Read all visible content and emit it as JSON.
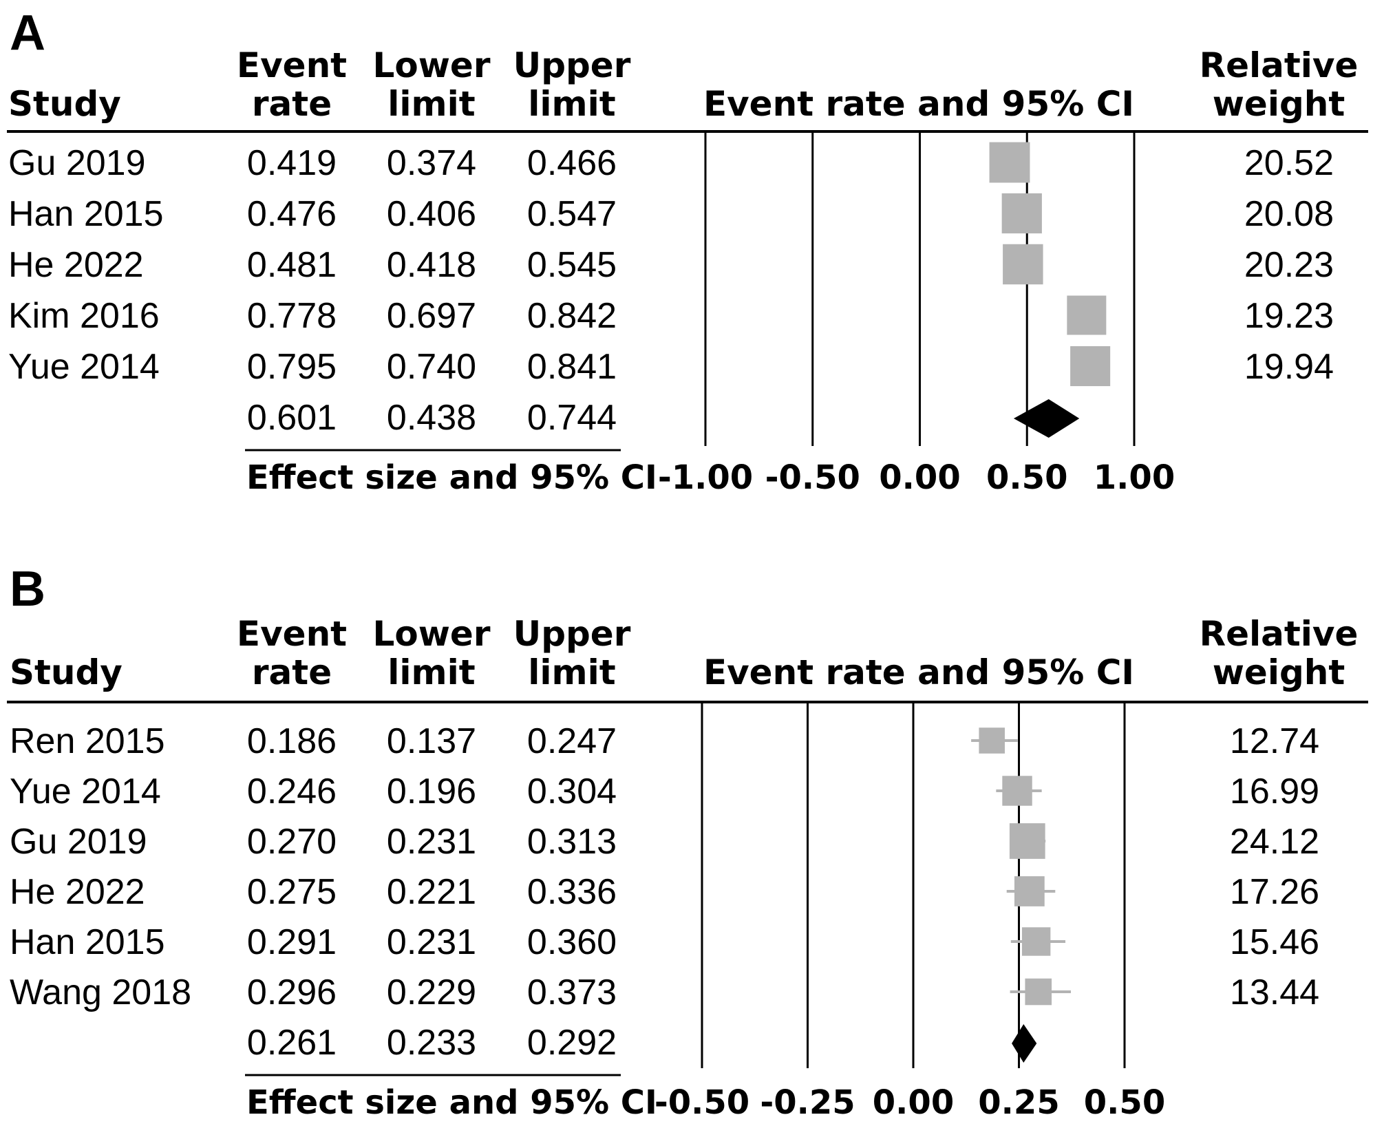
{
  "chart_data": [
    {
      "panel": "A",
      "type": "forest",
      "headers": {
        "study": "Study",
        "event_rate": [
          "Event",
          "rate"
        ],
        "lower_limit": [
          "Lower",
          "limit"
        ],
        "upper_limit": [
          "Upper",
          "limit"
        ],
        "plot_title": "Event rate and 95% CI",
        "relative_weight": [
          "Relative",
          "weight"
        ]
      },
      "studies": [
        {
          "name": "Gu 2019",
          "event_rate": "0.419",
          "lower": "0.374",
          "upper": "0.466",
          "weight": "20.52"
        },
        {
          "name": "Han 2015",
          "event_rate": "0.476",
          "lower": "0.406",
          "upper": "0.547",
          "weight": "20.08"
        },
        {
          "name": "He 2022",
          "event_rate": "0.481",
          "lower": "0.418",
          "upper": "0.545",
          "weight": "20.23"
        },
        {
          "name": "Kim 2016",
          "event_rate": "0.778",
          "lower": "0.697",
          "upper": "0.842",
          "weight": "19.23"
        },
        {
          "name": "Yue 2014",
          "event_rate": "0.795",
          "lower": "0.740",
          "upper": "0.841",
          "weight": "19.94"
        }
      ],
      "pooled": {
        "event_rate": "0.601",
        "lower": "0.438",
        "upper": "0.744"
      },
      "xlabel": "Effect size and 95% CI",
      "xlim": [
        -1.0,
        1.0
      ],
      "ticks": [
        -1.0,
        -0.5,
        0.0,
        0.5,
        1.0
      ],
      "tick_labels": [
        "-1.00",
        "-0.50",
        "0.00",
        "0.50",
        "1.00"
      ]
    },
    {
      "panel": "B",
      "type": "forest",
      "headers": {
        "study": "Study",
        "event_rate": [
          "Event",
          "rate"
        ],
        "lower_limit": [
          "Lower",
          "limit"
        ],
        "upper_limit": [
          "Upper",
          "limit"
        ],
        "plot_title": "Event rate and 95% CI",
        "relative_weight": [
          "Relative",
          "weight"
        ]
      },
      "studies": [
        {
          "name": "Ren 2015",
          "event_rate": "0.186",
          "lower": "0.137",
          "upper": "0.247",
          "weight": "12.74"
        },
        {
          "name": "Yue 2014",
          "event_rate": "0.246",
          "lower": "0.196",
          "upper": "0.304",
          "weight": "16.99"
        },
        {
          "name": "Gu 2019",
          "event_rate": "0.270",
          "lower": "0.231",
          "upper": "0.313",
          "weight": "24.12"
        },
        {
          "name": "He 2022",
          "event_rate": "0.275",
          "lower": "0.221",
          "upper": "0.336",
          "weight": "17.26"
        },
        {
          "name": "Han 2015",
          "event_rate": "0.291",
          "lower": "0.231",
          "upper": "0.360",
          "weight": "15.46"
        },
        {
          "name": "Wang 2018",
          "event_rate": "0.296",
          "lower": "0.229",
          "upper": "0.373",
          "weight": "13.44"
        }
      ],
      "pooled": {
        "event_rate": "0.261",
        "lower": "0.233",
        "upper": "0.292"
      },
      "xlabel": "Effect size and 95% CI",
      "xlim": [
        -0.5,
        0.5
      ],
      "ticks": [
        -0.5,
        -0.25,
        0.0,
        0.25,
        0.5
      ],
      "tick_labels": [
        "-0.50",
        "-0.25",
        "0.00",
        "0.25",
        "0.50"
      ]
    }
  ],
  "style": {
    "marker_color": "#b3b3b3",
    "diamond_color": "#000000",
    "line_color": "#000000"
  }
}
